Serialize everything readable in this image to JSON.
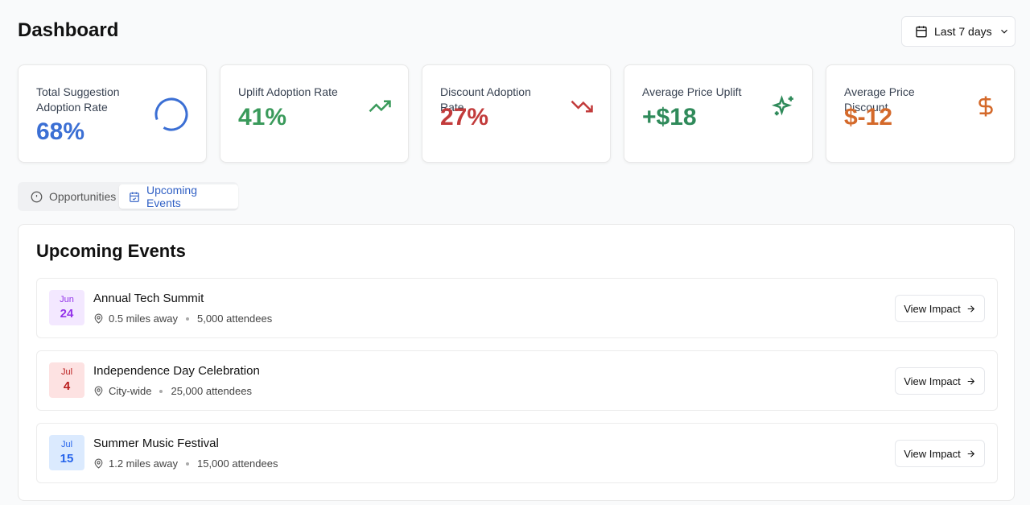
{
  "header": {
    "title": "Dashboard",
    "date_range": "Last 7 days"
  },
  "metrics": [
    {
      "label": "Total Suggestion Adoption Rate",
      "value": "68%"
    },
    {
      "label": "Uplift Adoption Rate",
      "value": "41%"
    },
    {
      "label": "Discount Adoption Rate",
      "value": "27%"
    },
    {
      "label": "Average Price Uplift",
      "value": "+$18"
    },
    {
      "label": "Average Price Discount",
      "value": "$-12"
    }
  ],
  "tabs": [
    "Opportunities",
    "Upcoming Events"
  ],
  "events": {
    "title": "Upcoming Events",
    "items": [
      {
        "month": "Jun",
        "day": "24",
        "name": "Annual Tech Summit",
        "location": "0.5 miles away",
        "attendees": "5,000 attendees",
        "action": "View Impact"
      },
      {
        "month": "Jul",
        "day": "4",
        "name": "Independence Day Celebration",
        "location": "City-wide",
        "attendees": "25,000 attendees",
        "action": "View Impact"
      },
      {
        "month": "Jul",
        "day": "15",
        "name": "Summer Music Festival",
        "location": "1.2 miles away",
        "attendees": "15,000 attendees",
        "action": "View Impact"
      }
    ]
  }
}
